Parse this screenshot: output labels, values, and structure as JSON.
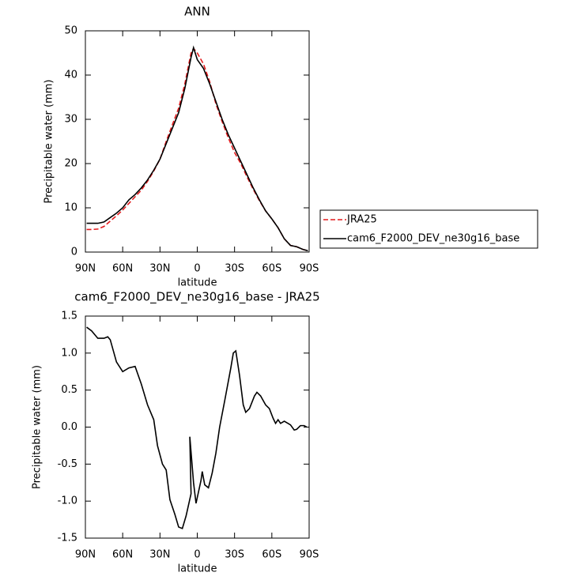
{
  "chart_data": [
    {
      "type": "line",
      "title": "ANN",
      "xlabel": "latitude",
      "ylabel": "Precipitable water (mm)",
      "x": [
        89,
        85,
        80,
        75,
        70,
        65,
        60,
        55,
        50,
        45,
        40,
        35,
        30,
        25,
        20,
        15,
        10,
        5,
        3,
        0,
        -5,
        -10,
        -15,
        -20,
        -25,
        -30,
        -35,
        -40,
        -45,
        -50,
        -55,
        -60,
        -65,
        -70,
        -75,
        -80,
        -85,
        -89
      ],
      "series": [
        {
          "name": "JRA25",
          "color": "#e31a1c",
          "style": "dashed",
          "values": [
            5.1,
            5.1,
            5.2,
            5.8,
            7,
            8.2,
            9.5,
            11,
            12.5,
            14,
            16,
            18.3,
            21,
            25,
            28.8,
            32.5,
            38,
            45,
            46,
            45,
            42.5,
            38.5,
            33.5,
            29.5,
            25.8,
            22.5,
            20,
            17,
            14.2,
            11.6,
            9.3,
            7.5,
            5.5,
            3,
            1.5,
            1.2,
            0.6,
            0.3
          ]
        },
        {
          "name": "cam6_F2000_DEV_ne30g16_base",
          "color": "#000000",
          "style": "solid",
          "values": [
            6.5,
            6.5,
            6.5,
            6.8,
            7.8,
            8.8,
            10,
            11.8,
            13,
            14.5,
            16.3,
            18.5,
            21,
            24.5,
            28,
            31.5,
            37,
            44,
            46.2,
            43.5,
            41.5,
            38,
            34,
            30,
            26.5,
            23.5,
            20.5,
            17.5,
            14.5,
            11.8,
            9.3,
            7.5,
            5.5,
            3,
            1.5,
            1.2,
            0.6,
            0.3
          ]
        }
      ],
      "xlim": [
        90,
        -90
      ],
      "xticks": [
        {
          "value": 90,
          "label": "90N"
        },
        {
          "value": 60,
          "label": "60N"
        },
        {
          "value": 30,
          "label": "30N"
        },
        {
          "value": 0,
          "label": "0"
        },
        {
          "value": -30,
          "label": "30S"
        },
        {
          "value": -60,
          "label": "60S"
        },
        {
          "value": -90,
          "label": "90S"
        }
      ],
      "ylim": [
        0,
        50
      ],
      "yticks": [
        0,
        10,
        20,
        30,
        40,
        50
      ],
      "legend": "right"
    },
    {
      "type": "line",
      "title": "cam6_F2000_DEV_ne30g16_base - JRA25",
      "xlabel": "latitude",
      "ylabel": "Precipitable water (mm)",
      "x": [
        89,
        85,
        80,
        75,
        72,
        70,
        65,
        60,
        55,
        50,
        45,
        40,
        35,
        32,
        28,
        25,
        22,
        18,
        15,
        12,
        9,
        5,
        6,
        3,
        1,
        -3,
        -4,
        -6,
        -9,
        -12,
        -15,
        -18,
        -22,
        -27,
        -29,
        -31,
        -34,
        -37,
        -39,
        -42,
        -46,
        -48,
        -51,
        -55,
        -58,
        -61,
        -63,
        -65,
        -67,
        -70,
        -73,
        -75,
        -78,
        -80,
        -83,
        -86,
        -88
      ],
      "series": [
        {
          "name": "cam6_F2000_DEV_ne30g16_base - JRA25",
          "color": "#000000",
          "style": "solid",
          "values": [
            1.35,
            1.3,
            1.2,
            1.2,
            1.22,
            1.18,
            0.88,
            0.75,
            0.8,
            0.82,
            0.58,
            0.3,
            0.1,
            -0.25,
            -0.5,
            -0.58,
            -0.98,
            -1.18,
            -1.35,
            -1.37,
            -1.2,
            -0.9,
            -0.13,
            -0.75,
            -1.03,
            -0.72,
            -0.6,
            -0.78,
            -0.82,
            -0.62,
            -0.35,
            0.0,
            0.35,
            0.8,
            1.0,
            1.03,
            0.7,
            0.3,
            0.2,
            0.25,
            0.42,
            0.47,
            0.42,
            0.3,
            0.25,
            0.12,
            0.05,
            0.1,
            0.05,
            0.08,
            0.05,
            0.03,
            -0.04,
            -0.03,
            0.02,
            0.02,
            0.0
          ]
        }
      ],
      "xlim": [
        90,
        -90
      ],
      "xticks": [
        {
          "value": 90,
          "label": "90N"
        },
        {
          "value": 60,
          "label": "60N"
        },
        {
          "value": 30,
          "label": "30N"
        },
        {
          "value": 0,
          "label": "0"
        },
        {
          "value": -30,
          "label": "30S"
        },
        {
          "value": -60,
          "label": "60S"
        },
        {
          "value": -90,
          "label": "90S"
        }
      ],
      "ylim": [
        -1.5,
        1.5
      ],
      "yticks": [
        {
          "value": -1.5,
          "label": "-1.5"
        },
        {
          "value": -1.0,
          "label": "-1.0"
        },
        {
          "value": -0.5,
          "label": "-0.5"
        },
        {
          "value": 0.0,
          "label": "0.0"
        },
        {
          "value": 0.5,
          "label": "0.5"
        },
        {
          "value": 1.0,
          "label": "1.0"
        },
        {
          "value": 1.5,
          "label": "1.5"
        }
      ]
    }
  ]
}
